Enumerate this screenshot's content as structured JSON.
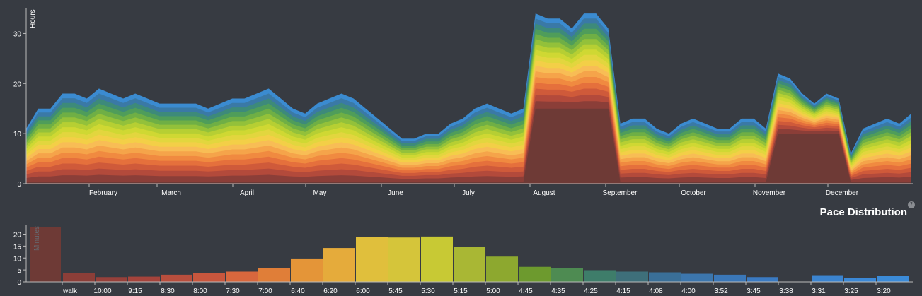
{
  "chart_data": [
    {
      "type": "area",
      "ylabel": "Hours",
      "ylim": [
        0,
        35
      ],
      "yticks": [
        "0",
        "10",
        "20",
        "30"
      ],
      "x_axis_labels": [
        "February",
        "March",
        "April",
        "May",
        "June",
        "July",
        "August",
        "September",
        "October",
        "November",
        "December"
      ],
      "stacked_by_pace": true,
      "series_colors": [
        "#6e3a36",
        "#8b3e38",
        "#b34a3b",
        "#cf5a3a",
        "#e5703c",
        "#f08a40",
        "#f5a44a",
        "#f8bd55",
        "#f3cf47",
        "#e2d63e",
        "#cfd833",
        "#b6cf33",
        "#93c13a",
        "#6faf45",
        "#4f9d5a",
        "#3d8a7a",
        "#3a79a6",
        "#3b8bd0"
      ],
      "x": [
        0,
        5,
        10,
        15,
        20,
        25,
        30,
        35,
        40,
        45,
        50,
        55,
        60,
        65,
        70,
        75,
        80,
        85,
        90,
        95,
        100,
        105,
        110,
        115,
        120,
        125,
        130,
        135,
        140,
        145,
        150,
        155,
        160,
        165,
        170,
        175,
        180,
        185,
        190,
        195,
        200,
        205,
        210,
        215,
        220,
        225,
        230,
        235,
        240,
        245,
        250,
        255,
        260,
        265,
        270,
        275,
        280,
        285,
        290,
        295,
        300,
        305,
        310,
        315,
        320,
        325,
        330,
        335,
        340,
        345,
        350,
        355,
        360,
        365
      ],
      "total": [
        11,
        15,
        15,
        18,
        18,
        17,
        19,
        18,
        17,
        18,
        17,
        16,
        16,
        16,
        16,
        15,
        16,
        17,
        17,
        18,
        19,
        17,
        15,
        14,
        16,
        17,
        18,
        17,
        15,
        13,
        11,
        9,
        9,
        10,
        10,
        12,
        13,
        15,
        16,
        15,
        14,
        15,
        34,
        33,
        33,
        31,
        34,
        34,
        31,
        12,
        13,
        13,
        11,
        10,
        12,
        13,
        12,
        11,
        11,
        13,
        13,
        11,
        22,
        21,
        18,
        16,
        18,
        17,
        6,
        11,
        12,
        13,
        12,
        14
      ],
      "dark_base": [
        0.3,
        0.3,
        0.3,
        0.3,
        0.3,
        0.3,
        0.3,
        0.3,
        0.3,
        0.3,
        0.3,
        0.3,
        0.3,
        0.3,
        0.3,
        0.3,
        0.3,
        0.3,
        0.3,
        0.3,
        0.3,
        0.3,
        0.3,
        0.3,
        0.3,
        0.3,
        0.3,
        0.3,
        0.3,
        0.3,
        0.3,
        0.3,
        0.3,
        0.3,
        0.3,
        0.3,
        0.3,
        0.3,
        0.3,
        0.3,
        0.3,
        0.3,
        15,
        15,
        15,
        15,
        15,
        15,
        15,
        0.3,
        0.3,
        0.3,
        0.3,
        0.3,
        0.3,
        0.3,
        0.3,
        0.3,
        0.3,
        0.3,
        0.3,
        0.3,
        10,
        10,
        10,
        10,
        10,
        10,
        0.3,
        0.3,
        0.3,
        0.3,
        0.3,
        0.3
      ]
    },
    {
      "type": "bar",
      "title": "Pace Distribution",
      "ylabel": "Minutes",
      "ylim": [
        0,
        24
      ],
      "yticks": [
        "0",
        "5",
        "10",
        "15",
        "20"
      ],
      "categories": [
        "walk",
        "10:00",
        "9:15",
        "8:30",
        "8:00",
        "7:30",
        "7:00",
        "6:40",
        "6:20",
        "6:00",
        "5:45",
        "5:30",
        "5:15",
        "5:00",
        "4:45",
        "4:35",
        "4:25",
        "4:15",
        "4:08",
        "4:00",
        "3:52",
        "3:45",
        "3:38",
        "3:31",
        "3:25",
        "3:20"
      ],
      "extra_leading_bar": 23,
      "values": [
        3.8,
        2,
        2.2,
        3,
        3.7,
        4.3,
        5.8,
        9.8,
        14.2,
        18.8,
        18.6,
        19,
        14.8,
        10.6,
        6.3,
        5.7,
        4.9,
        4.3,
        4.0,
        3.4,
        3.0,
        2.0,
        0,
        2.8,
        1.6,
        2.4
      ],
      "colors": [
        "#8b3e38",
        "#96403a",
        "#a5433b",
        "#b84e3d",
        "#c8563d",
        "#d8673d",
        "#e07e38",
        "#e49538",
        "#e5ab3b",
        "#e0bf3c",
        "#d5c53a",
        "#c8c934",
        "#a9b734",
        "#8da82f",
        "#6d9a2e",
        "#4e8b52",
        "#3e7d6a",
        "#3e6f7a",
        "#3a6f98",
        "#3c76ad",
        "#3a77b8",
        "#3a7ac2",
        "#3a7ac2",
        "#3b84d0",
        "#3b88d6",
        "#3b8bd8"
      ],
      "leading_color": "#6e3a36"
    }
  ]
}
